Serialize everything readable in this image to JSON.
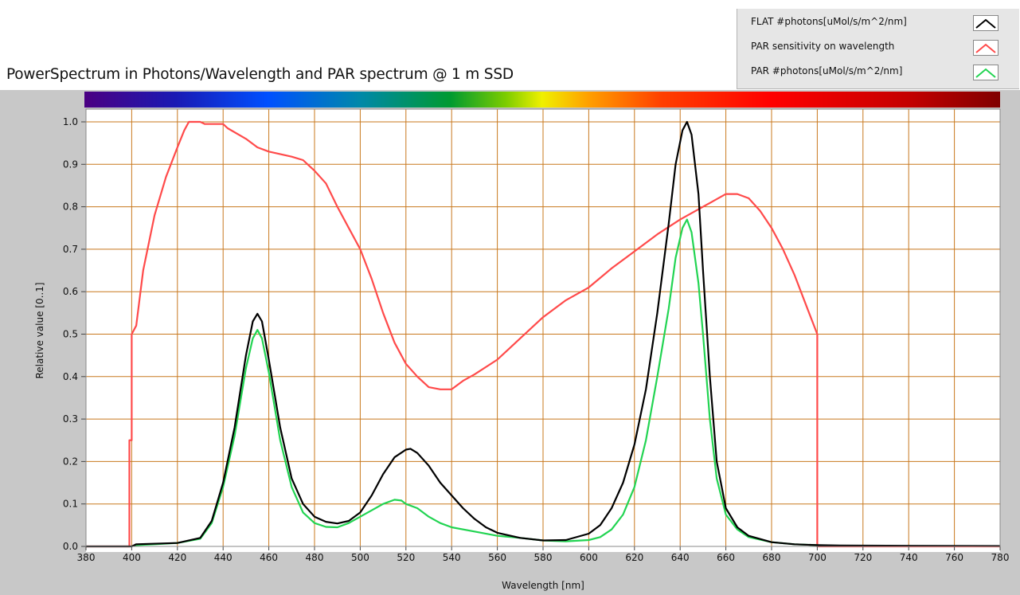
{
  "chart_data": {
    "type": "line",
    "title": "PowerSpectrum in Photons/Wavelength and PAR spectrum @ 1 m SSD",
    "xlabel": "Wavelength [nm]",
    "ylabel": "Relative value [0..1]",
    "xlim": [
      380,
      780
    ],
    "ylim": [
      0,
      1.03
    ],
    "x_ticks": [
      "380",
      "400",
      "420",
      "440",
      "460",
      "480",
      "500",
      "520",
      "540",
      "560",
      "580",
      "600",
      "620",
      "640",
      "660",
      "680",
      "700",
      "720",
      "740",
      "760",
      "780"
    ],
    "y_ticks": [
      "0.0",
      "0.1",
      "0.2",
      "0.3",
      "0.4",
      "0.5",
      "0.6",
      "0.7",
      "0.8",
      "0.9",
      "1.0"
    ],
    "grid": true,
    "legend_position": "top-right",
    "colorbar": "visible spectrum",
    "series": [
      {
        "name": "FLAT #photons[uMol/s/m^2/nm]",
        "color": "#000000",
        "points": [
          [
            380,
            0
          ],
          [
            400,
            0
          ],
          [
            402,
            0.005
          ],
          [
            420,
            0.008
          ],
          [
            430,
            0.02
          ],
          [
            435,
            0.06
          ],
          [
            440,
            0.15
          ],
          [
            445,
            0.28
          ],
          [
            450,
            0.45
          ],
          [
            453,
            0.53
          ],
          [
            455,
            0.548
          ],
          [
            457,
            0.53
          ],
          [
            460,
            0.44
          ],
          [
            465,
            0.28
          ],
          [
            470,
            0.16
          ],
          [
            475,
            0.1
          ],
          [
            480,
            0.07
          ],
          [
            485,
            0.058
          ],
          [
            490,
            0.054
          ],
          [
            495,
            0.06
          ],
          [
            500,
            0.08
          ],
          [
            505,
            0.12
          ],
          [
            510,
            0.17
          ],
          [
            515,
            0.21
          ],
          [
            520,
            0.228
          ],
          [
            522,
            0.23
          ],
          [
            525,
            0.22
          ],
          [
            530,
            0.19
          ],
          [
            535,
            0.15
          ],
          [
            540,
            0.12
          ],
          [
            545,
            0.09
          ],
          [
            550,
            0.065
          ],
          [
            555,
            0.045
          ],
          [
            560,
            0.032
          ],
          [
            570,
            0.02
          ],
          [
            580,
            0.014
          ],
          [
            590,
            0.015
          ],
          [
            600,
            0.03
          ],
          [
            605,
            0.05
          ],
          [
            610,
            0.09
          ],
          [
            615,
            0.15
          ],
          [
            620,
            0.24
          ],
          [
            625,
            0.37
          ],
          [
            630,
            0.55
          ],
          [
            635,
            0.76
          ],
          [
            638,
            0.9
          ],
          [
            641,
            0.98
          ],
          [
            643,
            1.0
          ],
          [
            645,
            0.97
          ],
          [
            648,
            0.83
          ],
          [
            650,
            0.65
          ],
          [
            653,
            0.4
          ],
          [
            656,
            0.2
          ],
          [
            660,
            0.09
          ],
          [
            665,
            0.045
          ],
          [
            670,
            0.025
          ],
          [
            680,
            0.01
          ],
          [
            690,
            0.005
          ],
          [
            700,
            0.003
          ],
          [
            710,
            0.002
          ],
          [
            780,
            0.001
          ]
        ]
      },
      {
        "name": "PAR sensitivity on wavelength",
        "color": "#ff4a4a",
        "points": [
          [
            380,
            0
          ],
          [
            399,
            0
          ],
          [
            399,
            0.25
          ],
          [
            400,
            0.25
          ],
          [
            400,
            0.5
          ],
          [
            402,
            0.52
          ],
          [
            405,
            0.65
          ],
          [
            410,
            0.78
          ],
          [
            415,
            0.87
          ],
          [
            420,
            0.94
          ],
          [
            423,
            0.98
          ],
          [
            425,
            1.0
          ],
          [
            430,
            1.0
          ],
          [
            432,
            0.995
          ],
          [
            440,
            0.995
          ],
          [
            442,
            0.985
          ],
          [
            450,
            0.96
          ],
          [
            455,
            0.94
          ],
          [
            460,
            0.93
          ],
          [
            470,
            0.918
          ],
          [
            475,
            0.91
          ],
          [
            480,
            0.885
          ],
          [
            485,
            0.855
          ],
          [
            490,
            0.8
          ],
          [
            495,
            0.75
          ],
          [
            500,
            0.7
          ],
          [
            505,
            0.63
          ],
          [
            510,
            0.55
          ],
          [
            515,
            0.48
          ],
          [
            520,
            0.43
          ],
          [
            525,
            0.4
          ],
          [
            530,
            0.375
          ],
          [
            535,
            0.37
          ],
          [
            540,
            0.37
          ],
          [
            545,
            0.39
          ],
          [
            550,
            0.405
          ],
          [
            560,
            0.44
          ],
          [
            570,
            0.49
          ],
          [
            580,
            0.54
          ],
          [
            590,
            0.58
          ],
          [
            600,
            0.61
          ],
          [
            610,
            0.655
          ],
          [
            620,
            0.695
          ],
          [
            630,
            0.735
          ],
          [
            640,
            0.77
          ],
          [
            650,
            0.8
          ],
          [
            655,
            0.815
          ],
          [
            660,
            0.83
          ],
          [
            665,
            0.83
          ],
          [
            670,
            0.82
          ],
          [
            675,
            0.79
          ],
          [
            680,
            0.75
          ],
          [
            685,
            0.7
          ],
          [
            690,
            0.64
          ],
          [
            695,
            0.57
          ],
          [
            700,
            0.5
          ],
          [
            700,
            0
          ],
          [
            780,
            0
          ]
        ]
      },
      {
        "name": "PAR #photons[uMol/s/m^2/nm]",
        "color": "#22d452",
        "points": [
          [
            400,
            0
          ],
          [
            402,
            0.003
          ],
          [
            410,
            0.005
          ],
          [
            420,
            0.008
          ],
          [
            430,
            0.018
          ],
          [
            435,
            0.055
          ],
          [
            440,
            0.14
          ],
          [
            445,
            0.26
          ],
          [
            450,
            0.42
          ],
          [
            453,
            0.49
          ],
          [
            455,
            0.51
          ],
          [
            457,
            0.49
          ],
          [
            460,
            0.41
          ],
          [
            465,
            0.25
          ],
          [
            470,
            0.14
          ],
          [
            475,
            0.08
          ],
          [
            480,
            0.055
          ],
          [
            485,
            0.046
          ],
          [
            490,
            0.045
          ],
          [
            495,
            0.055
          ],
          [
            500,
            0.07
          ],
          [
            505,
            0.085
          ],
          [
            510,
            0.1
          ],
          [
            515,
            0.11
          ],
          [
            518,
            0.108
          ],
          [
            520,
            0.1
          ],
          [
            525,
            0.09
          ],
          [
            530,
            0.07
          ],
          [
            535,
            0.055
          ],
          [
            540,
            0.045
          ],
          [
            550,
            0.035
          ],
          [
            560,
            0.025
          ],
          [
            570,
            0.02
          ],
          [
            580,
            0.014
          ],
          [
            590,
            0.012
          ],
          [
            600,
            0.015
          ],
          [
            605,
            0.022
          ],
          [
            610,
            0.04
          ],
          [
            615,
            0.075
          ],
          [
            620,
            0.14
          ],
          [
            625,
            0.25
          ],
          [
            630,
            0.4
          ],
          [
            635,
            0.56
          ],
          [
            638,
            0.68
          ],
          [
            641,
            0.75
          ],
          [
            643,
            0.77
          ],
          [
            645,
            0.74
          ],
          [
            648,
            0.62
          ],
          [
            650,
            0.5
          ],
          [
            653,
            0.3
          ],
          [
            656,
            0.16
          ],
          [
            660,
            0.075
          ],
          [
            665,
            0.04
          ],
          [
            670,
            0.022
          ],
          [
            680,
            0.01
          ],
          [
            690,
            0.005
          ],
          [
            700,
            0.003
          ]
        ]
      }
    ]
  },
  "legend": [
    {
      "label": "FLAT #photons[uMol/s/m^2/nm]",
      "color": "#000000"
    },
    {
      "label": "PAR sensitivity on wavelength",
      "color": "#ff4a4a"
    },
    {
      "label": "PAR #photons[uMol/s/m^2/nm]",
      "color": "#22d452"
    }
  ],
  "colors": {
    "grid": "#c8781e",
    "plot_background": "#ffffff",
    "frame": "#c8c8c8"
  }
}
